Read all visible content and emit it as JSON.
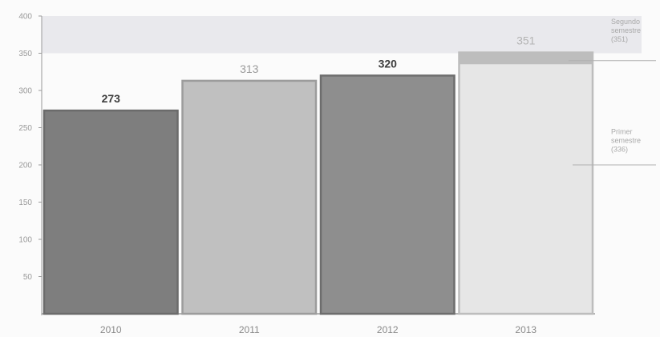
{
  "chart_data": {
    "type": "bar",
    "title": "",
    "xlabel": "",
    "ylabel": "",
    "categories": [
      "2010",
      "2011",
      "2012",
      "2013"
    ],
    "values": [
      273,
      313,
      320,
      351
    ],
    "value_labels": [
      "273",
      "313",
      "320",
      "351"
    ],
    "value_label_bold": [
      true,
      false,
      true,
      false
    ],
    "ylim": [
      0,
      400
    ],
    "yticks": [
      50,
      100,
      150,
      200,
      250,
      300,
      350,
      400
    ],
    "ytick_labels": [
      "50",
      "100",
      "150",
      "200",
      "250",
      "300",
      "350",
      "400"
    ],
    "grid": false,
    "highlight_band": [
      350,
      400
    ],
    "bar_colors": [
      "#7e7e7e",
      "#c0c0c0",
      "#8e8e8e",
      "#e6e6e6"
    ],
    "bar_stroke_colors": [
      "#6b6b6b",
      "#9c9c9c",
      "#6d6d6d",
      "#bdbdbd"
    ],
    "value_label_colors": [
      "#3d3d3d",
      "#9a9a9a",
      "#3d3d3d",
      "#b4b4b4"
    ],
    "stacked_top_segment": {
      "category": "2013",
      "from": 336,
      "to": 351,
      "color": "#bdbdbd"
    },
    "annotations": [
      {
        "lines": [
          "Segundo",
          "semestre",
          "(351)"
        ],
        "pointer_value": 340
      },
      {
        "lines": [
          "Primer",
          "semestre",
          "(336)"
        ],
        "pointer_value": 200
      }
    ]
  }
}
